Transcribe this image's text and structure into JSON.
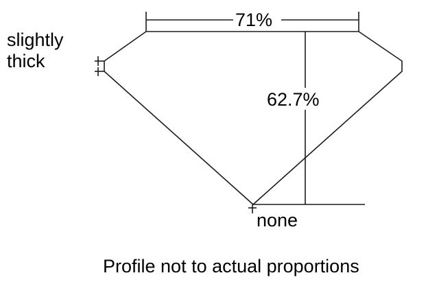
{
  "diagram": {
    "table_percent": "71%",
    "total_depth_percent": "62.7%",
    "girdle_label_line1": "slightly",
    "girdle_label_line2": "thick",
    "culet_label": "none",
    "caption": "Profile not to actual proportions",
    "line_color": "#1a1a1a"
  }
}
